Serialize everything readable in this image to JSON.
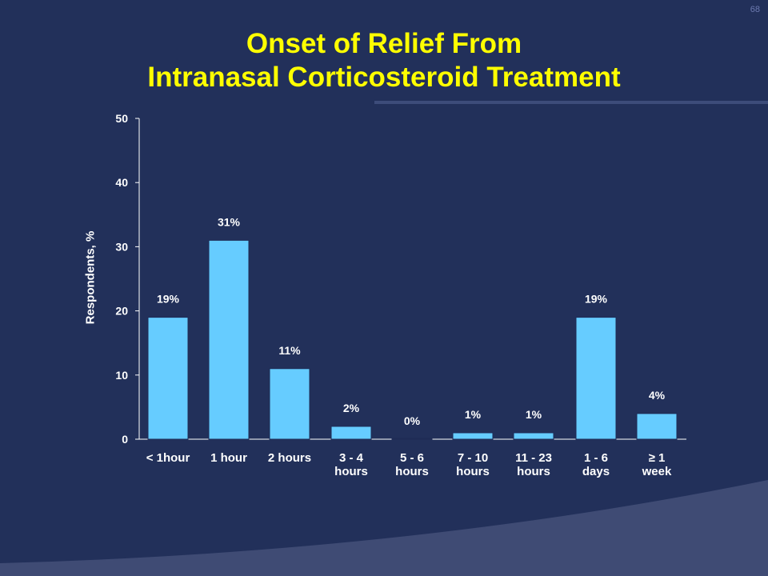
{
  "page_number": "68",
  "title_lines": [
    "Onset of Relief From",
    "Intranasal Corticosteroid Treatment"
  ],
  "colors": {
    "background": "#22305a",
    "title": "#ffff00",
    "bar_fill": "#66ccff",
    "bar_stroke": "#1e2b55",
    "text": "#ffffff"
  },
  "chart_data": {
    "type": "bar",
    "title": "Onset of Relief From Intranasal Corticosteroid Treatment",
    "ylabel": "Respondents, %",
    "ylim": [
      0,
      50
    ],
    "yticks": [
      0,
      10,
      20,
      30,
      40,
      50
    ],
    "grid": false,
    "categories": [
      [
        "< 1hour"
      ],
      [
        "1 hour"
      ],
      [
        "2 hours"
      ],
      [
        "3 - 4",
        "hours"
      ],
      [
        "5 - 6",
        "hours"
      ],
      [
        "7 - 10",
        "hours"
      ],
      [
        "11 - 23",
        "hours"
      ],
      [
        "1 - 6",
        "days"
      ],
      [
        "≥ 1",
        "week"
      ]
    ],
    "values": [
      19,
      31,
      11,
      2,
      0,
      1,
      1,
      19,
      4
    ],
    "data_labels": [
      "19%",
      "31%",
      "11%",
      "2%",
      "0%",
      "1%",
      "1%",
      "19%",
      "4%"
    ]
  }
}
